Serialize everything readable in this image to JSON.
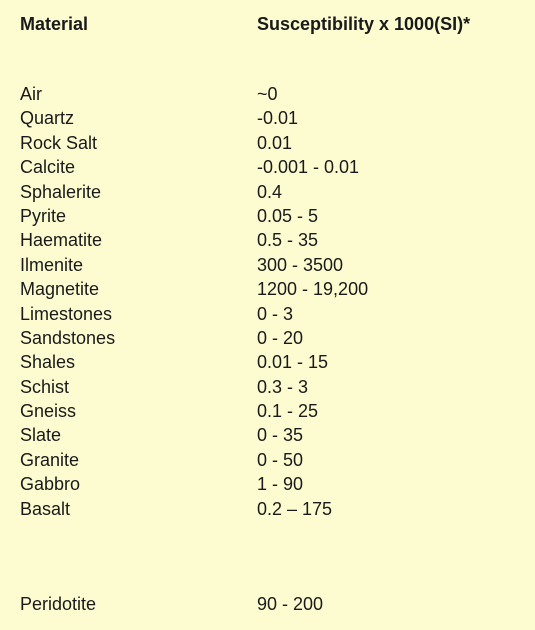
{
  "header": {
    "material": "Material",
    "susceptibility": "Susceptibility x 1000(SI)*"
  },
  "rows": [
    {
      "material": "Air",
      "value": "~0"
    },
    {
      "material": "Quartz",
      "value": "-0.01"
    },
    {
      "material": "Rock Salt",
      "value": "0.01"
    },
    {
      "material": "Calcite",
      "value": "-0.001 - 0.01"
    },
    {
      "material": "Sphalerite",
      "value": "0.4"
    },
    {
      "material": "Pyrite",
      "value": "0.05 - 5"
    },
    {
      "material": "Haematite",
      "value": "0.5 - 35"
    },
    {
      "material": "Ilmenite",
      "value": "300 - 3500"
    },
    {
      "material": "Magnetite",
      "value": "1200 - 19,200"
    },
    {
      "material": "Limestones",
      "value": "0 - 3"
    },
    {
      "material": "Sandstones",
      "value": "0 - 20"
    },
    {
      "material": "Shales",
      "value": "0.01 - 15"
    },
    {
      "material": "Schist",
      "value": "0.3 - 3"
    },
    {
      "material": "Gneiss",
      "value": "0.1 - 25"
    },
    {
      "material": "Slate",
      "value": "0 - 35"
    },
    {
      "material": "Granite",
      "value": "0 - 50"
    },
    {
      "material": "Gabbro",
      "value": "1 - 90"
    },
    {
      "material": "Basalt",
      "value": "0.2 – 175"
    }
  ],
  "last_row": {
    "material": "Peridotite",
    "value": "90 - 200"
  },
  "colors": {
    "background": "#fdfbd0",
    "text": "#1a1a1a"
  }
}
